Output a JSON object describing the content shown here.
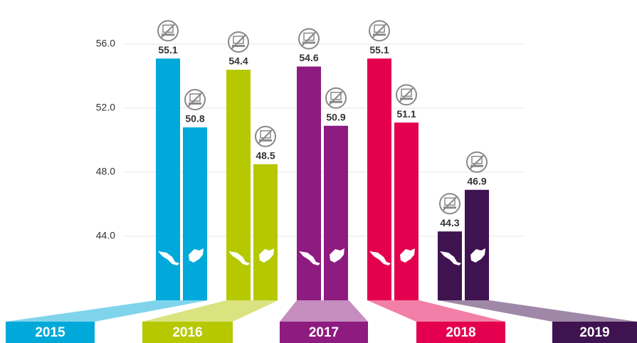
{
  "chart_data": {
    "type": "bar",
    "categories": [
      "2015",
      "2016",
      "2017",
      "2018",
      "2019"
    ],
    "colors": [
      "#00a9d9",
      "#b5c800",
      "#8e1b7f",
      "#e4004f",
      "#3f1250"
    ],
    "series": [
      {
        "values": [
          55.1,
          54.4,
          54.6,
          55.1,
          44.3
        ]
      },
      {
        "values": [
          50.8,
          48.5,
          50.9,
          51.1,
          46.9
        ]
      }
    ],
    "ylim": [
      40,
      58
    ],
    "yticks": [
      {
        "value": 44,
        "label": "44.0"
      },
      {
        "value": 48,
        "label": "48.0"
      },
      {
        "value": 52,
        "label": "52.0"
      },
      {
        "value": 56,
        "label": "56.0"
      }
    ],
    "grid": true
  }
}
